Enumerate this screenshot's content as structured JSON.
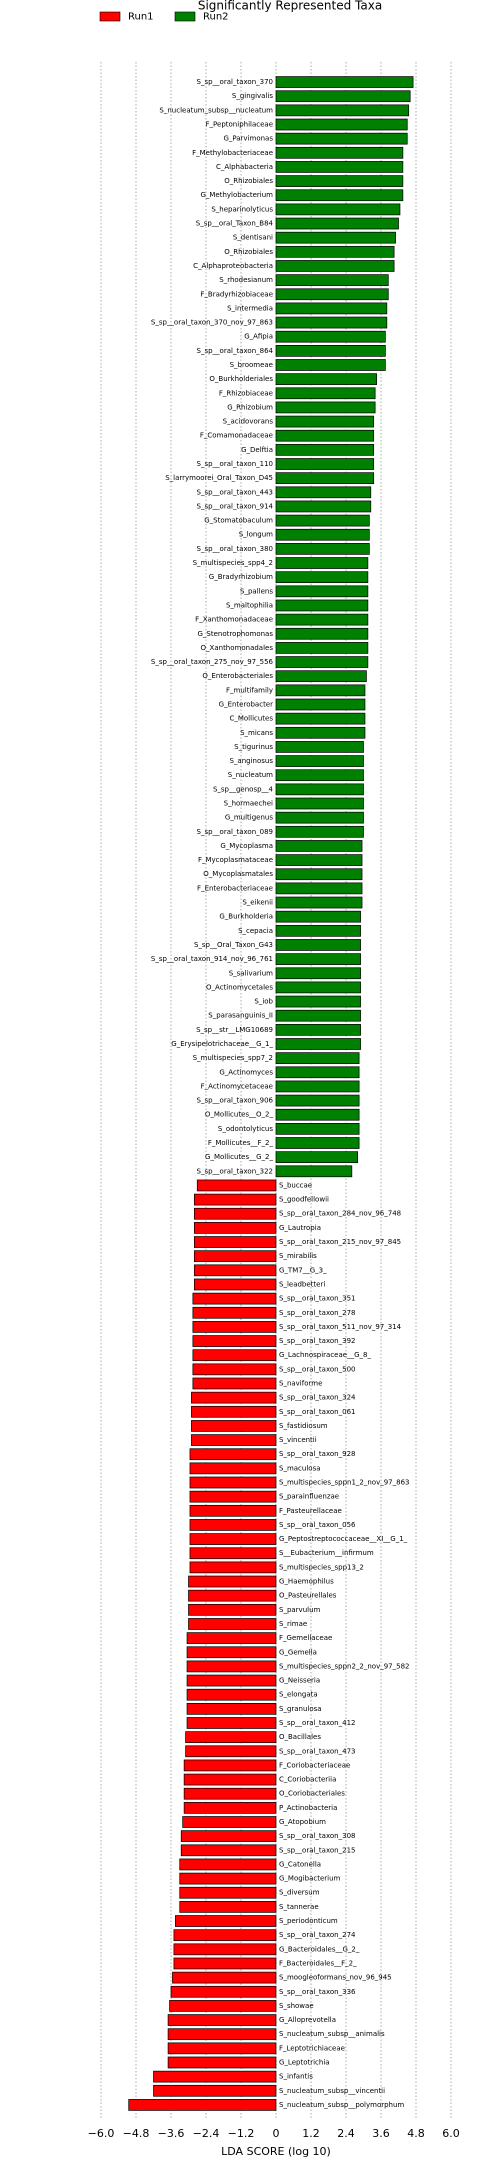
{
  "chart_data": {
    "type": "bar",
    "orientation": "horizontal",
    "title": "Significantly Represented Taxa",
    "x_label": "LDA SCORE (log 10)",
    "legend": "upper left",
    "grid": true,
    "xlim": [
      -6.6,
      6.6
    ],
    "xticks": [
      {
        "value": -6,
        "label": "−6.0"
      },
      {
        "value": -4.8,
        "label": "−4.8"
      },
      {
        "value": -3.6,
        "label": "−3.6"
      },
      {
        "value": -2.4,
        "label": "−2.4"
      },
      {
        "value": -1.2,
        "label": "−1.2"
      },
      0,
      1.2,
      2.4,
      3.6,
      4.8,
      {
        "value": 6,
        "label": "6.0"
      }
    ],
    "categories": [
      "S_sp__oral_taxon_370",
      "S_gingivalis",
      "S_nucleatum_subsp__nucleatum",
      "F_Peptoniphilaceae",
      "G_Parvimonas",
      "F_Methylobacteriaceae",
      "C_Alphabacteria",
      "O_Rhizobiales",
      "G_Methylobacterium",
      "S_heparinolyticus",
      "S_sp__oral_Taxon_B84",
      "S_dentisani",
      "O_Rhizobiales",
      "C_Alphaproteobacteria",
      "S_rhodesianum",
      "F_Bradyrhizobiaceae",
      "S_intermedia",
      "S_sp__oral_taxon_370_nov_97_863",
      "G_Afipia",
      "S_sp__oral_taxon_864",
      "S_broomeae",
      "O_Burkholderiales",
      "F_Rhizobiaceae",
      "G_Rhizobium",
      "S_acidovorans",
      "F_Comamonadaceae",
      "G_Delftia",
      "S_sp__oral_taxon_110",
      "S_larrymoorei_Oral_Taxon_D45",
      "S_sp__oral_taxon_443",
      "S_sp__oral_taxon_914",
      "G_Stomatobaculum",
      "S_longum",
      "S_sp__oral_taxon_380",
      "S_multispecies_spp4_2",
      "G_Bradyrhizobium",
      "S_pallens",
      "S_maltophilia",
      "F_Xanthomonadaceae",
      "G_Stenotrophomonas",
      "O_Xanthomonadales",
      "S_sp__oral_taxon_275_nov_97_556",
      "O_Enterobacteriales",
      "F_multifamily",
      "G_Enterobacter",
      "C_Mollicutes",
      "S_micans",
      "S_tigurinus",
      "S_anginosus",
      "S_nucleatum",
      "S_sp__genosp__4",
      "S_hormaechei",
      "G_multigenus",
      "S_sp__oral_taxon_089",
      "G_Mycoplasma",
      "F_Mycoplasmataceae",
      "O_Mycoplasmatales",
      "F_Enterobacteriaceae",
      "S_eikenii",
      "G_Burkholderia",
      "S_cepacia",
      "S_sp__Oral_Taxon_G43",
      "S_sp__oral_taxon_914_nov_96_761",
      "S_salivarium",
      "O_Actinomycetales",
      "S_iob",
      "S_parasanguinis_II",
      "S_sp__str__LMG10689",
      "G_Erysipelotrichaceae__G_1_",
      "S_multispecies_spp7_2",
      "G_Actinomyces",
      "F_Actinomycetaceae",
      "S_sp__oral_taxon_906",
      "O_Mollicutes__O_2_",
      "S_odontolyticus",
      "F_Mollicutes__F_2_",
      "G_Mollicutes__G_2_",
      "S_sp__oral_taxon_322",
      "S_buccae",
      "S_goodfellowii",
      "S_sp__oral_taxon_284_nov_96_748",
      "G_Lautropia",
      "S_sp__oral_taxon_215_nov_97_845",
      "S_mirabilis",
      "G_TM7__G_3_",
      "S_leadbetteri",
      "S_sp__oral_taxon_351",
      "S_sp__oral_taxon_278",
      "S_sp__oral_taxon_511_nov_97_314",
      "S_sp__oral_taxon_392",
      "G_Lachnospiraceae__G_8_",
      "S_sp__oral_taxon_500",
      "S_naviforme",
      "S_sp__oral_taxon_324",
      "S_sp__oral_taxon_061",
      "S_fastidiosum",
      "S_vincentii",
      "S_sp__oral_taxon_928",
      "S_maculosa",
      "S_multispecies_sppn1_2_nov_97_863",
      "S_parainfluenzae",
      "F_Pasteurellaceae",
      "S_sp__oral_taxon_056",
      "G_Peptostreptococcaceae__XI__G_1_",
      "S__Eubacterium__infirmum",
      "S_multispecies_spp13_2",
      "G_Haemophilus",
      "O_Pasteurellales",
      "S_parvulum",
      "S_rimae",
      "F_Gemellaceae",
      "G_Gemella",
      "S_multispecies_sppn2_2_nov_97_582",
      "G_Neisseria",
      "S_elongata",
      "S_granulosa",
      "S_sp__oral_taxon_412",
      "O_Bacillales",
      "S_sp__oral_taxon_473",
      "F_Coriobacteriaceae",
      "C_Coriobacteriia",
      "O_Coriobacteriales",
      "P_Actinobacteria",
      "G_Atopobium",
      "S_sp__oral_taxon_308",
      "S_sp__oral_taxon_215",
      "G_Catonella",
      "G_Mogibacterium",
      "S_diversum",
      "S_tannerae",
      "S_periodonticum",
      "S_sp__oral_taxon_274",
      "G_Bacteroidales__G_2_",
      "F_Bacteroidales__F_2_",
      "S_moogleoformans_nov_96_945",
      "S_sp__oral_taxon_336",
      "S_showae",
      "G_Alloprevotella",
      "S_nucleatum_subsp__animalis",
      "F_Leptotrichiaceae",
      "G_Leptotrichia",
      "S_infantis",
      "S_nucleatum_subsp__vincentii",
      "S_nucleatum_subsp__polymorphum"
    ],
    "series": [
      {
        "name": "Run1",
        "color": "#ff0000",
        "values": [
          null,
          null,
          null,
          null,
          null,
          null,
          null,
          null,
          null,
          null,
          null,
          null,
          null,
          null,
          null,
          null,
          null,
          null,
          null,
          null,
          null,
          null,
          null,
          null,
          null,
          null,
          null,
          null,
          null,
          null,
          null,
          null,
          null,
          null,
          null,
          null,
          null,
          null,
          null,
          null,
          null,
          null,
          null,
          null,
          null,
          null,
          null,
          null,
          null,
          null,
          null,
          null,
          null,
          null,
          null,
          null,
          null,
          null,
          null,
          null,
          null,
          null,
          null,
          null,
          null,
          null,
          null,
          null,
          null,
          null,
          null,
          null,
          null,
          null,
          null,
          null,
          null,
          null,
          -2.7,
          -2.8,
          -2.8,
          -2.8,
          -2.8,
          -2.8,
          -2.8,
          -2.8,
          -2.85,
          -2.85,
          -2.85,
          -2.85,
          -2.85,
          -2.85,
          -2.85,
          -2.9,
          -2.9,
          -2.9,
          -2.9,
          -2.95,
          -2.95,
          -2.95,
          -2.95,
          -2.95,
          -2.95,
          -2.95,
          -2.95,
          -2.95,
          -3.0,
          -3.0,
          -3.0,
          -3.0,
          -3.05,
          -3.05,
          -3.05,
          -3.05,
          -3.05,
          -3.05,
          -3.05,
          -3.1,
          -3.1,
          -3.15,
          -3.15,
          -3.15,
          -3.15,
          -3.2,
          -3.25,
          -3.25,
          -3.3,
          -3.3,
          -3.3,
          -3.3,
          -3.45,
          -3.5,
          -3.5,
          -3.5,
          -3.55,
          -3.6,
          -3.65,
          -3.7,
          -3.7,
          -3.7,
          -3.7,
          -4.2,
          -4.2,
          -5.05
        ]
      },
      {
        "name": "Run2",
        "color": "#008000",
        "values": [
          4.7,
          4.6,
          4.55,
          4.5,
          4.5,
          4.35,
          4.35,
          4.35,
          4.35,
          4.25,
          4.2,
          4.1,
          4.05,
          4.05,
          3.85,
          3.85,
          3.8,
          3.8,
          3.75,
          3.75,
          3.75,
          3.45,
          3.4,
          3.4,
          3.35,
          3.35,
          3.35,
          3.35,
          3.35,
          3.25,
          3.25,
          3.2,
          3.2,
          3.2,
          3.15,
          3.15,
          3.15,
          3.15,
          3.15,
          3.15,
          3.15,
          3.15,
          3.1,
          3.05,
          3.05,
          3.05,
          3.05,
          3.0,
          3.0,
          3.0,
          3.0,
          3.0,
          3.0,
          3.0,
          2.95,
          2.95,
          2.95,
          2.95,
          2.95,
          2.9,
          2.9,
          2.9,
          2.9,
          2.9,
          2.9,
          2.9,
          2.9,
          2.9,
          2.9,
          2.85,
          2.85,
          2.85,
          2.85,
          2.85,
          2.85,
          2.85,
          2.8,
          2.6,
          null,
          null,
          null,
          null,
          null,
          null,
          null,
          null,
          null,
          null,
          null,
          null,
          null,
          null,
          null,
          null,
          null,
          null,
          null,
          null,
          null,
          null,
          null,
          null,
          null,
          null,
          null,
          null,
          null,
          null,
          null,
          null,
          null,
          null,
          null,
          null,
          null,
          null,
          null,
          null,
          null,
          null,
          null,
          null,
          null,
          null,
          null,
          null,
          null,
          null,
          null,
          null,
          null,
          null,
          null,
          null,
          null,
          null,
          null,
          null,
          null,
          null,
          null,
          null,
          null,
          null
        ]
      }
    ]
  }
}
